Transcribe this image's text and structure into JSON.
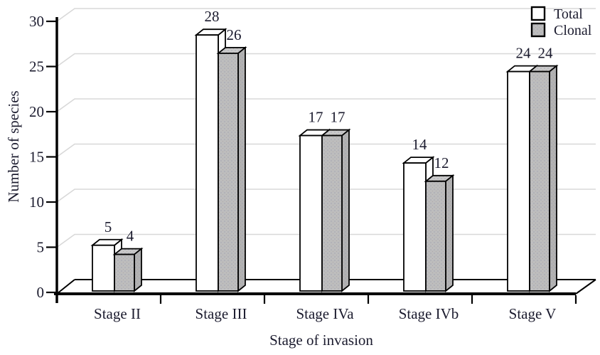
{
  "chart_data": {
    "type": "bar",
    "variant": "3d-grouped-column",
    "title": "",
    "xlabel": "Stage of invasion",
    "ylabel": "Number of species",
    "categories": [
      "Stage II",
      "Stage III",
      "Stage IVa",
      "Stage IVb",
      "Stage V"
    ],
    "series": [
      {
        "name": "Total",
        "fill": "#ffffff",
        "values": [
          5,
          28,
          17,
          14,
          24
        ]
      },
      {
        "name": "Clonal",
        "fill": "#bdbdbd",
        "values": [
          4,
          26,
          17,
          12,
          24
        ]
      }
    ],
    "ylim": [
      0,
      30
    ],
    "yticks": [
      0,
      5,
      10,
      15,
      20,
      25,
      30
    ],
    "grid": true,
    "legend_position": "top-right",
    "colors": {
      "outline": "#000000",
      "grid_line": "#d8d8d8",
      "axis": "#000000",
      "text": "#1b1b2e",
      "clonal_front": "#bdbdbd",
      "clonal_top": "#c9c9c9",
      "clonal_side": "#b2b2b2",
      "total_face": "#ffffff"
    }
  }
}
